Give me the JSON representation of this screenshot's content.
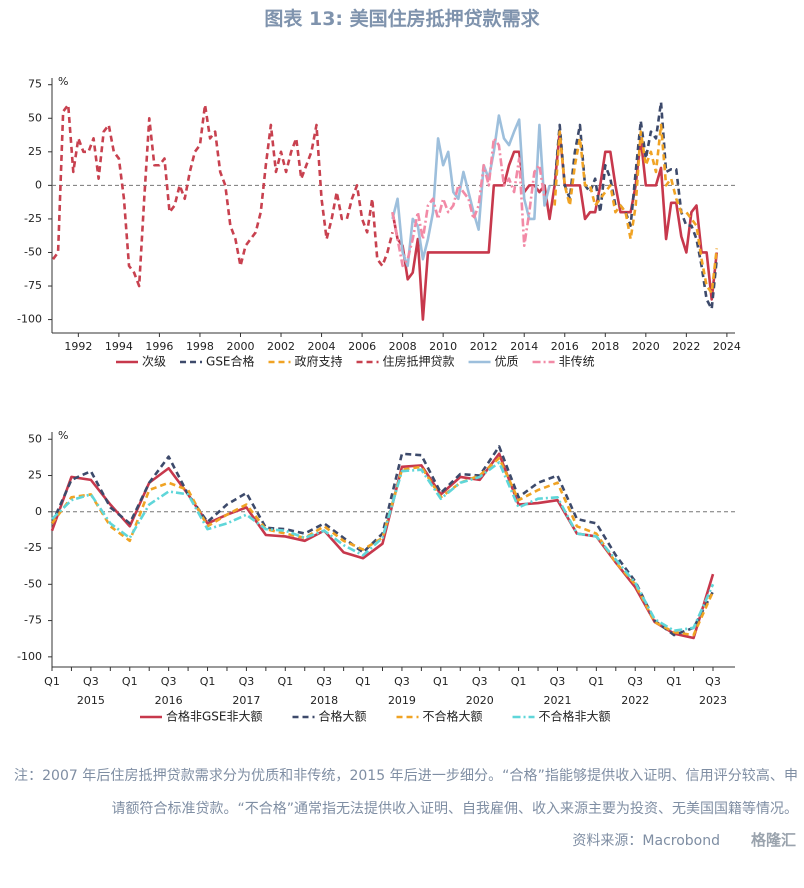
{
  "header": {
    "title": "图表 13: 美国住房抵押贷款需求"
  },
  "notes": "注：2007 年后住房抵押贷款需求分为优质和非传统，2015 年后进一步细分。“合格”指能够提供收入证明、信用评分较高、申请额符合标准贷款。“不合格”通常指无法提供收入证明、自我雇佣、收入来源主要为投资、无美国国籍等情况。",
  "source": "资料来源：Macrobond",
  "watermark": "格隆汇",
  "chart_data": [
    {
      "type": "line",
      "ylabel": "%",
      "xlim": [
        1990.7,
        2024.4
      ],
      "xticks": [
        1992,
        1994,
        1996,
        1998,
        2000,
        2002,
        2004,
        2006,
        2008,
        2010,
        2012,
        2014,
        2016,
        2018,
        2020,
        2022,
        2024
      ],
      "ylim": [
        -110,
        80
      ],
      "yticks": [
        75,
        50,
        25,
        0,
        -25,
        -50,
        -75,
        -100
      ],
      "series": [
        {
          "name": "次级",
          "color": "#c7384c",
          "style": "solid",
          "x": [
            2007.5,
            2007.75,
            2008,
            2008.25,
            2008.5,
            2008.75,
            2009,
            2009.25,
            2010,
            2011,
            2012,
            2012.25,
            2012.5,
            2013,
            2013.25,
            2013.5,
            2013.75,
            2014,
            2014.25,
            2014.5,
            2014.75,
            2015,
            2015.25,
            2015.5,
            2015.75,
            2016,
            2016.25,
            2016.5,
            2016.75,
            2017,
            2017.25,
            2017.5,
            2017.75,
            2018,
            2018.25,
            2018.5,
            2018.75,
            2019,
            2019.25,
            2019.5,
            2019.75,
            2020,
            2020.25,
            2020.5,
            2020.75,
            2021,
            2021.25,
            2021.5,
            2021.75,
            2022,
            2022.25,
            2022.5,
            2022.75,
            2023,
            2023.25,
            2023.5
          ],
          "values": [
            -20,
            -40,
            -45,
            -70,
            -65,
            -40,
            -100,
            -50,
            -50,
            -50,
            -50,
            -50,
            0,
            0,
            15,
            25,
            25,
            -5,
            0,
            0,
            -5,
            0,
            -25,
            0,
            40,
            0,
            0,
            0,
            0,
            -25,
            -20,
            -20,
            0,
            25,
            25,
            0,
            -20,
            -20,
            -20,
            0,
            35,
            0,
            0,
            0,
            13,
            -40,
            -13,
            -13,
            -38,
            -50,
            -20,
            -15,
            -50,
            -50,
            -85,
            -50
          ]
        },
        {
          "name": "GSE合格",
          "color": "#3d4a6b",
          "style": "dashed",
          "x": [
            2015.5,
            2015.75,
            2016,
            2016.25,
            2016.5,
            2016.75,
            2017,
            2017.25,
            2017.5,
            2017.75,
            2018,
            2018.25,
            2018.5,
            2018.75,
            2019,
            2019.25,
            2019.5,
            2019.75,
            2020,
            2020.25,
            2020.5,
            2020.75,
            2021,
            2021.25,
            2021.5,
            2021.75,
            2022,
            2022.25,
            2022.5,
            2022.75,
            2023,
            2023.25,
            2023.5
          ],
          "values": [
            0,
            45,
            0,
            -10,
            25,
            45,
            0,
            -5,
            5,
            -20,
            15,
            5,
            -15,
            -15,
            -20,
            -30,
            10,
            48,
            20,
            40,
            35,
            62,
            10,
            12,
            12,
            -20,
            -30,
            -30,
            -40,
            -60,
            -85,
            -92,
            -55
          ]
        },
        {
          "name": "政府支持",
          "color": "#f0a324",
          "style": "dashed",
          "x": [
            2015.5,
            2015.75,
            2016,
            2016.25,
            2016.5,
            2016.75,
            2017,
            2017.25,
            2017.5,
            2017.75,
            2018,
            2018.25,
            2018.5,
            2018.75,
            2019,
            2019.25,
            2019.5,
            2019.75,
            2020,
            2020.25,
            2020.5,
            2020.75,
            2021,
            2021.25,
            2021.5,
            2021.75,
            2022,
            2022.25,
            2022.5,
            2022.75,
            2023,
            2023.25,
            2023.5
          ],
          "values": [
            -15,
            40,
            0,
            -15,
            15,
            35,
            0,
            0,
            -15,
            -10,
            -5,
            0,
            -20,
            -15,
            -20,
            -40,
            -15,
            40,
            15,
            25,
            10,
            45,
            0,
            5,
            -10,
            -20,
            -20,
            -25,
            -30,
            -55,
            -75,
            -80,
            -47
          ]
        },
        {
          "name": "住房抵押贷款",
          "color": "#c8414f",
          "style": "dashed",
          "x": [
            1990.75,
            1991,
            1991.25,
            1991.5,
            1991.75,
            1992,
            1992.25,
            1992.5,
            1992.75,
            1993,
            1993.25,
            1993.5,
            1993.75,
            1994,
            1994.25,
            1994.5,
            1994.75,
            1995,
            1995.25,
            1995.5,
            1995.75,
            1996,
            1996.25,
            1996.5,
            1996.75,
            1997,
            1997.25,
            1997.5,
            1997.75,
            1998,
            1998.25,
            1998.5,
            1998.75,
            1999,
            1999.25,
            1999.5,
            1999.75,
            2000,
            2000.25,
            2000.5,
            2000.75,
            2001,
            2001.25,
            2001.5,
            2001.75,
            2002,
            2002.25,
            2002.5,
            2002.75,
            2003,
            2003.25,
            2003.5,
            2003.75,
            2004,
            2004.25,
            2004.5,
            2004.75,
            2005,
            2005.25,
            2005.5,
            2005.75,
            2006,
            2006.25,
            2006.5,
            2006.75,
            2007,
            2007.25,
            2007.5
          ],
          "values": [
            -55,
            -50,
            55,
            60,
            10,
            35,
            25,
            25,
            35,
            5,
            40,
            45,
            25,
            20,
            -10,
            -60,
            -65,
            -75,
            -10,
            50,
            15,
            15,
            20,
            -20,
            -15,
            0,
            -10,
            10,
            25,
            30,
            60,
            35,
            40,
            10,
            0,
            -30,
            -40,
            -60,
            -45,
            -40,
            -35,
            -20,
            15,
            45,
            10,
            25,
            10,
            25,
            35,
            5,
            15,
            25,
            45,
            -10,
            -40,
            -25,
            -5,
            -25,
            -25,
            -10,
            0,
            -25,
            -35,
            -10,
            -55,
            -60,
            -50,
            -35
          ]
        },
        {
          "name": "优质",
          "color": "#9dbfdc",
          "style": "solid",
          "x": [
            2007.5,
            2007.75,
            2008,
            2008.25,
            2008.5,
            2008.75,
            2009,
            2009.25,
            2009.5,
            2009.75,
            2010,
            2010.25,
            2010.5,
            2010.75,
            2011,
            2011.25,
            2011.5,
            2011.75,
            2012,
            2012.25,
            2012.5,
            2012.75,
            2013,
            2013.25,
            2013.5,
            2013.75,
            2014,
            2014.25,
            2014.5,
            2014.75,
            2015,
            2015.25
          ],
          "values": [
            -25,
            -10,
            -50,
            -60,
            -25,
            -30,
            -55,
            -40,
            -20,
            35,
            15,
            25,
            -5,
            -10,
            10,
            -5,
            -20,
            -33,
            15,
            5,
            25,
            52,
            35,
            30,
            40,
            49,
            -10,
            -25,
            -25,
            45,
            -15,
            0
          ]
        },
        {
          "name": "非传统",
          "color": "#f28aa6",
          "style": "dashdot",
          "x": [
            2007.5,
            2007.75,
            2008,
            2008.25,
            2008.5,
            2008.75,
            2009,
            2009.25,
            2009.5,
            2009.75,
            2010,
            2010.25,
            2010.5,
            2010.75,
            2011,
            2011.25,
            2011.5,
            2011.75,
            2012,
            2012.25,
            2012.5,
            2012.75,
            2013,
            2013.25,
            2013.5,
            2013.75,
            2014,
            2014.25,
            2014.5,
            2014.75,
            2015
          ],
          "values": [
            -20,
            -40,
            -60,
            -55,
            -40,
            -20,
            -40,
            -15,
            -10,
            -25,
            -10,
            -20,
            -15,
            0,
            -5,
            -10,
            -25,
            -15,
            15,
            0,
            35,
            30,
            0,
            5,
            -5,
            20,
            -45,
            -20,
            10,
            15,
            -10
          ]
        }
      ]
    },
    {
      "type": "line",
      "ylabel": "%",
      "categories": [
        "Q1",
        null,
        "Q3",
        null,
        "Q1",
        null,
        "Q3",
        null,
        "Q1",
        null,
        "Q3",
        null,
        "Q1",
        null,
        "Q3",
        null,
        "Q1",
        null,
        "Q3",
        null,
        "Q1",
        null,
        "Q3",
        null,
        "Q1",
        null,
        "Q3",
        null,
        "Q1",
        null,
        "Q3",
        null,
        "Q1",
        null,
        "Q3"
      ],
      "category_groups": [
        "2015",
        "2016",
        "2017",
        "2018",
        "2019",
        "2020",
        "2021",
        "2022",
        "2023"
      ],
      "ylim": [
        -107,
        55
      ],
      "yticks": [
        50,
        25,
        0,
        -25,
        -50,
        -75,
        -100
      ],
      "series": [
        {
          "name": "合格非GSE非大额",
          "color": "#c7384c",
          "style": "solid",
          "values": [
            -13,
            24,
            22,
            5,
            -10,
            20,
            30,
            12,
            -8,
            -2,
            3,
            -16,
            -17,
            -20,
            -13,
            -28,
            -32,
            -22,
            31,
            32,
            12,
            24,
            22,
            40,
            5,
            6,
            8,
            -15,
            -17,
            -35,
            -52,
            -76,
            -84,
            -87,
            -43
          ]
        },
        {
          "name": "合格大额",
          "color": "#3d4a6b",
          "style": "dashed",
          "values": [
            -8,
            22,
            28,
            3,
            -8,
            20,
            38,
            12,
            -7,
            5,
            13,
            -11,
            -12,
            -15,
            -8,
            -18,
            -28,
            -15,
            40,
            39,
            13,
            26,
            25,
            45,
            10,
            20,
            25,
            -5,
            -8,
            -30,
            -48,
            -75,
            -85,
            -80,
            -55
          ]
        },
        {
          "name": "不合格大额",
          "color": "#f0a324",
          "style": "dashed",
          "values": [
            -8,
            10,
            12,
            -10,
            -20,
            15,
            20,
            15,
            -10,
            -2,
            5,
            -12,
            -15,
            -18,
            -10,
            -20,
            -26,
            -18,
            29,
            31,
            10,
            20,
            25,
            37,
            8,
            15,
            20,
            -10,
            -15,
            -35,
            -50,
            -76,
            -83,
            -85,
            -55
          ]
        },
        {
          "name": "不合格非大额",
          "color": "#5fd6d9",
          "style": "dashdot",
          "values": [
            -5,
            8,
            12,
            -8,
            -18,
            5,
            14,
            12,
            -12,
            -8,
            -2,
            -12,
            -13,
            -18,
            -13,
            -23,
            -30,
            -18,
            28,
            29,
            9,
            20,
            24,
            34,
            3,
            9,
            10,
            -15,
            -17,
            -33,
            -49,
            -74,
            -82,
            -80,
            -50
          ]
        }
      ]
    }
  ]
}
